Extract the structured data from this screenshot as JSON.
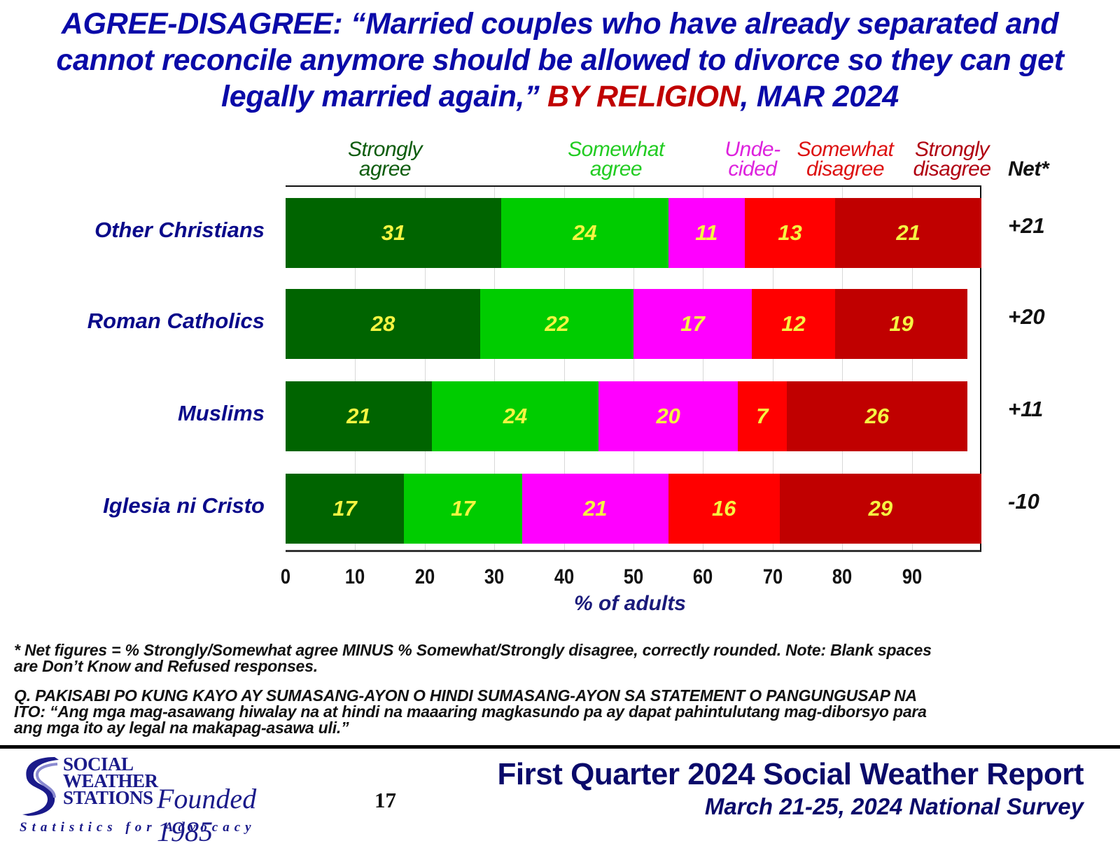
{
  "title": {
    "line1": "AGREE-DISAGREE: “Married couples who have already separated and",
    "line2": "cannot reconcile anymore should be allowed to divorce so they can get",
    "line3_prefix": "legally married again,” ",
    "line3_highlight": "BY RELIGION",
    "line3_suffix": ", MAR 2024"
  },
  "legend": [
    {
      "line1": "Strongly",
      "line2": "agree",
      "color": "#0d5c0d"
    },
    {
      "line1": "Somewhat",
      "line2": "agree",
      "color": "#22cc22"
    },
    {
      "line1": "Unde-",
      "line2": "cided",
      "color": "#dd22dd"
    },
    {
      "line1": "Somewhat",
      "line2": "disagree",
      "color": "#dd1111"
    },
    {
      "line1": "Strongly",
      "line2": "disagree",
      "color": "#b00010"
    }
  ],
  "net_header": "Net*",
  "chart_data": {
    "type": "bar",
    "orientation": "horizontal",
    "stacked": true,
    "title": "AGREE-DISAGREE: “Married couples who have already separated and cannot reconcile anymore should be allowed to divorce so they can get legally married again,” BY RELIGION, MAR 2024",
    "xlabel": "% of adults",
    "ylabel": "",
    "xlim": [
      0,
      100
    ],
    "xticks": [
      "0",
      "10",
      "20",
      "30",
      "40",
      "50",
      "60",
      "70",
      "80",
      "90"
    ],
    "grid": true,
    "legend_position": "top",
    "categories": [
      "Other Christians",
      "Roman Catholics",
      "Muslims",
      "Iglesia ni Cristo"
    ],
    "series": [
      {
        "name": "Strongly agree",
        "color": "#006400",
        "values": [
          31,
          28,
          21,
          17
        ]
      },
      {
        "name": "Somewhat agree",
        "color": "#00cc00",
        "values": [
          24,
          22,
          24,
          17
        ]
      },
      {
        "name": "Undecided",
        "color": "#ff00ff",
        "values": [
          11,
          17,
          20,
          21
        ]
      },
      {
        "name": "Somewhat disagree",
        "color": "#ff0000",
        "values": [
          13,
          12,
          7,
          16
        ]
      },
      {
        "name": "Strongly disagree",
        "color": "#c00000",
        "values": [
          21,
          19,
          26,
          29
        ]
      }
    ],
    "net": [
      "+21",
      "+20",
      "+11",
      "-10"
    ],
    "value_label_color": "#f5f542"
  },
  "notes": {
    "net_line1": "* Net figures = % Strongly/Somewhat agree MINUS % Somewhat/Strongly disagree, correctly rounded. Note: Blank spaces",
    "net_line2": "are Don’t Know and Refused responses.",
    "q_line1": "Q. PAKISABI PO KUNG KAYO AY SUMASANG-AYON O HINDI SUMASANG-AYON SA STATEMENT O PANGUNGUSAP NA",
    "q_line2": "ITO: “Ang mga mag-asawang hiwalay na at hindi na maaaring magkasundo pa ay dapat pahintulutang mag-diborsyo para",
    "q_line3": "ang mga ito ay legal na makapag-asawa uli.”"
  },
  "footer": {
    "logo_line1": "SOCIAL",
    "logo_line2": "WEATHER",
    "logo_line3": "STATIONS",
    "founded": "Founded 1985",
    "tagline": "Statistics for Advocacy",
    "page_number": "17",
    "report_title": "First Quarter 2024 Social Weather Report",
    "report_subtitle": "March 21-25, 2024 National Survey"
  }
}
